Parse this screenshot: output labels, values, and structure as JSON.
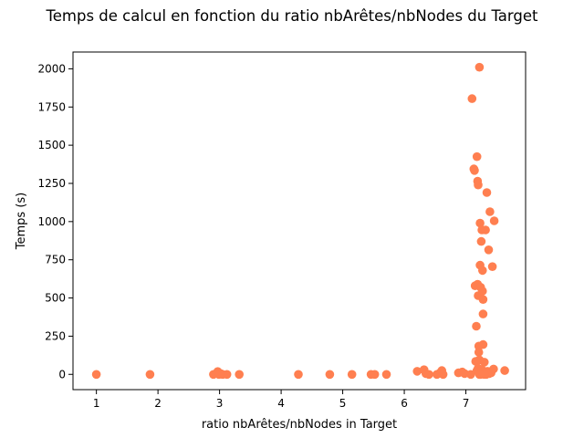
{
  "chart_data": {
    "type": "scatter",
    "title": "Temps de calcul en fonction du ratio nbArêtes/nbNodes du Target",
    "xlabel": "ratio nbArêtes/nbNodes in Target",
    "ylabel": "Temps (s)",
    "xlim": [
      0.62,
      7.97
    ],
    "ylim": [
      -100,
      2110
    ],
    "xticks": [
      1,
      2,
      3,
      4,
      5,
      6,
      7
    ],
    "yticks": [
      0,
      250,
      500,
      750,
      1000,
      1250,
      1500,
      1750,
      2000
    ],
    "grid": false,
    "color": "#ff7f50",
    "points": [
      [
        1.0,
        0
      ],
      [
        1.87,
        0
      ],
      [
        2.9,
        0
      ],
      [
        2.97,
        18
      ],
      [
        2.99,
        0
      ],
      [
        3.02,
        5
      ],
      [
        3.05,
        0
      ],
      [
        3.12,
        0
      ],
      [
        3.32,
        0
      ],
      [
        4.28,
        0
      ],
      [
        4.79,
        0
      ],
      [
        5.15,
        0
      ],
      [
        5.46,
        0
      ],
      [
        5.52,
        0
      ],
      [
        5.71,
        0
      ],
      [
        6.21,
        20
      ],
      [
        6.32,
        30
      ],
      [
        6.35,
        5
      ],
      [
        6.4,
        0
      ],
      [
        6.53,
        0
      ],
      [
        6.58,
        10
      ],
      [
        6.61,
        25
      ],
      [
        6.63,
        0
      ],
      [
        6.88,
        10
      ],
      [
        6.94,
        15
      ],
      [
        6.98,
        5
      ],
      [
        7.08,
        0
      ],
      [
        7.1,
        1805
      ],
      [
        7.13,
        1345
      ],
      [
        7.14,
        1335
      ],
      [
        7.15,
        580
      ],
      [
        7.16,
        85
      ],
      [
        7.17,
        315
      ],
      [
        7.18,
        1425
      ],
      [
        7.19,
        1265
      ],
      [
        7.2,
        1240
      ],
      [
        7.19,
        590
      ],
      [
        7.2,
        515
      ],
      [
        7.21,
        185
      ],
      [
        7.21,
        145
      ],
      [
        7.22,
        2010
      ],
      [
        7.22,
        95
      ],
      [
        7.23,
        990
      ],
      [
        7.23,
        715
      ],
      [
        7.24,
        570
      ],
      [
        7.25,
        870
      ],
      [
        7.26,
        945
      ],
      [
        7.27,
        680
      ],
      [
        7.27,
        545
      ],
      [
        7.28,
        490
      ],
      [
        7.28,
        395
      ],
      [
        7.28,
        195
      ],
      [
        7.3,
        80
      ],
      [
        7.32,
        945
      ],
      [
        7.34,
        1190
      ],
      [
        7.37,
        815
      ],
      [
        7.39,
        1065
      ],
      [
        7.43,
        705
      ],
      [
        7.46,
        1005
      ],
      [
        7.63,
        25
      ],
      [
        7.18,
        25
      ],
      [
        7.2,
        40
      ],
      [
        7.22,
        10
      ],
      [
        7.24,
        0
      ],
      [
        7.26,
        30
      ],
      [
        7.29,
        15
      ],
      [
        7.31,
        5
      ],
      [
        7.33,
        0
      ],
      [
        7.35,
        20
      ],
      [
        7.38,
        5
      ],
      [
        7.41,
        10
      ],
      [
        7.45,
        35
      ],
      [
        7.3,
        0
      ],
      [
        7.22,
        0
      ]
    ]
  }
}
